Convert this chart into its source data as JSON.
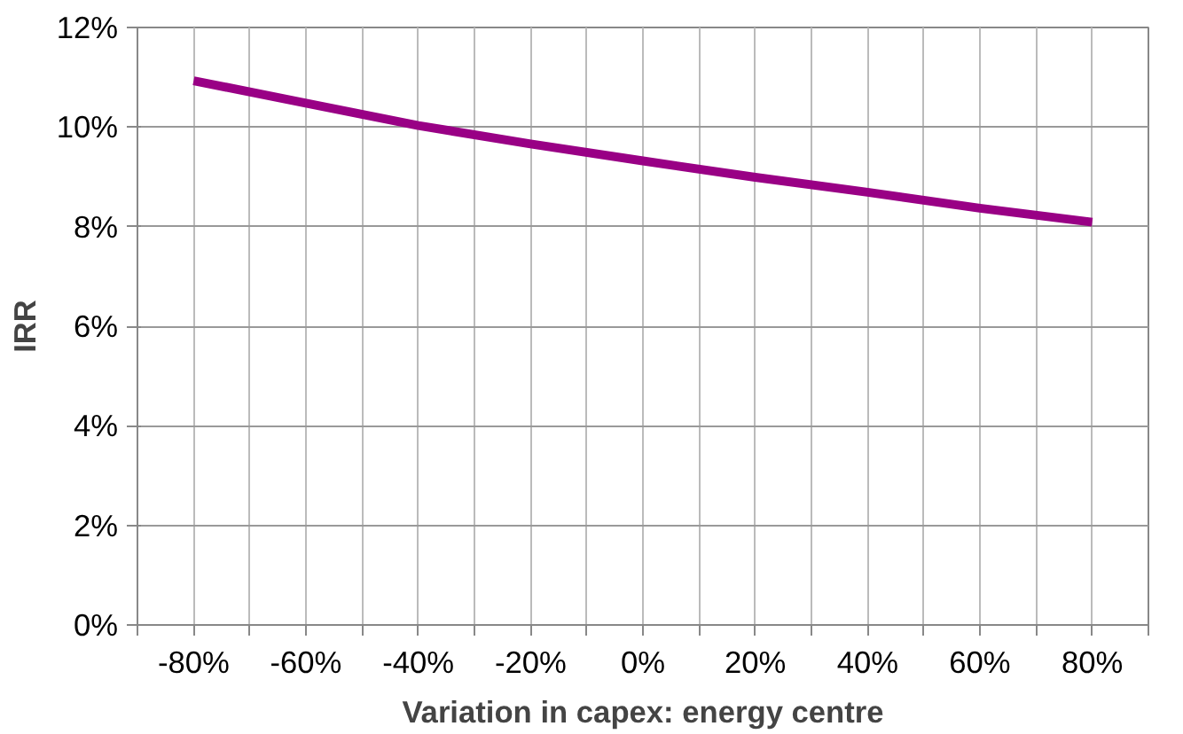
{
  "chart_data": {
    "type": "line",
    "xlabel": "Variation in capex: energy centre",
    "ylabel": "IRR",
    "x": [
      -80,
      -60,
      -40,
      -20,
      0,
      20,
      40,
      60,
      80
    ],
    "series": [
      {
        "color": "#990085",
        "values": [
          10.93,
          10.48,
          10.03,
          9.66,
          9.32,
          8.99,
          8.69,
          8.37,
          8.09
        ]
      }
    ],
    "xlim": [
      -90,
      90
    ],
    "xticks": [
      {
        "value": -90,
        "label": null
      },
      {
        "value": -80,
        "label": "-80%"
      },
      {
        "value": -70,
        "label": null
      },
      {
        "value": -60,
        "label": "-60%"
      },
      {
        "value": -50,
        "label": null
      },
      {
        "value": -40,
        "label": "-40%"
      },
      {
        "value": -30,
        "label": null
      },
      {
        "value": -20,
        "label": "-20%"
      },
      {
        "value": -10,
        "label": null
      },
      {
        "value": 0,
        "label": "0%"
      },
      {
        "value": 10,
        "label": null
      },
      {
        "value": 20,
        "label": "20%"
      },
      {
        "value": 30,
        "label": null
      },
      {
        "value": 40,
        "label": "40%"
      },
      {
        "value": 50,
        "label": null
      },
      {
        "value": 60,
        "label": "60%"
      },
      {
        "value": 70,
        "label": null
      },
      {
        "value": 80,
        "label": "80%"
      },
      {
        "value": 90,
        "label": null
      }
    ],
    "ylim": [
      0,
      12
    ],
    "yticks": [
      {
        "value": 0,
        "label": "0%"
      },
      {
        "value": 2,
        "label": "2%"
      },
      {
        "value": 4,
        "label": "4%"
      },
      {
        "value": 6,
        "label": "6%"
      },
      {
        "value": 8,
        "label": "8%"
      },
      {
        "value": 10,
        "label": "10%"
      },
      {
        "value": 12,
        "label": "12%"
      }
    ],
    "grid": true,
    "marker": "none",
    "line_style": "solid"
  }
}
